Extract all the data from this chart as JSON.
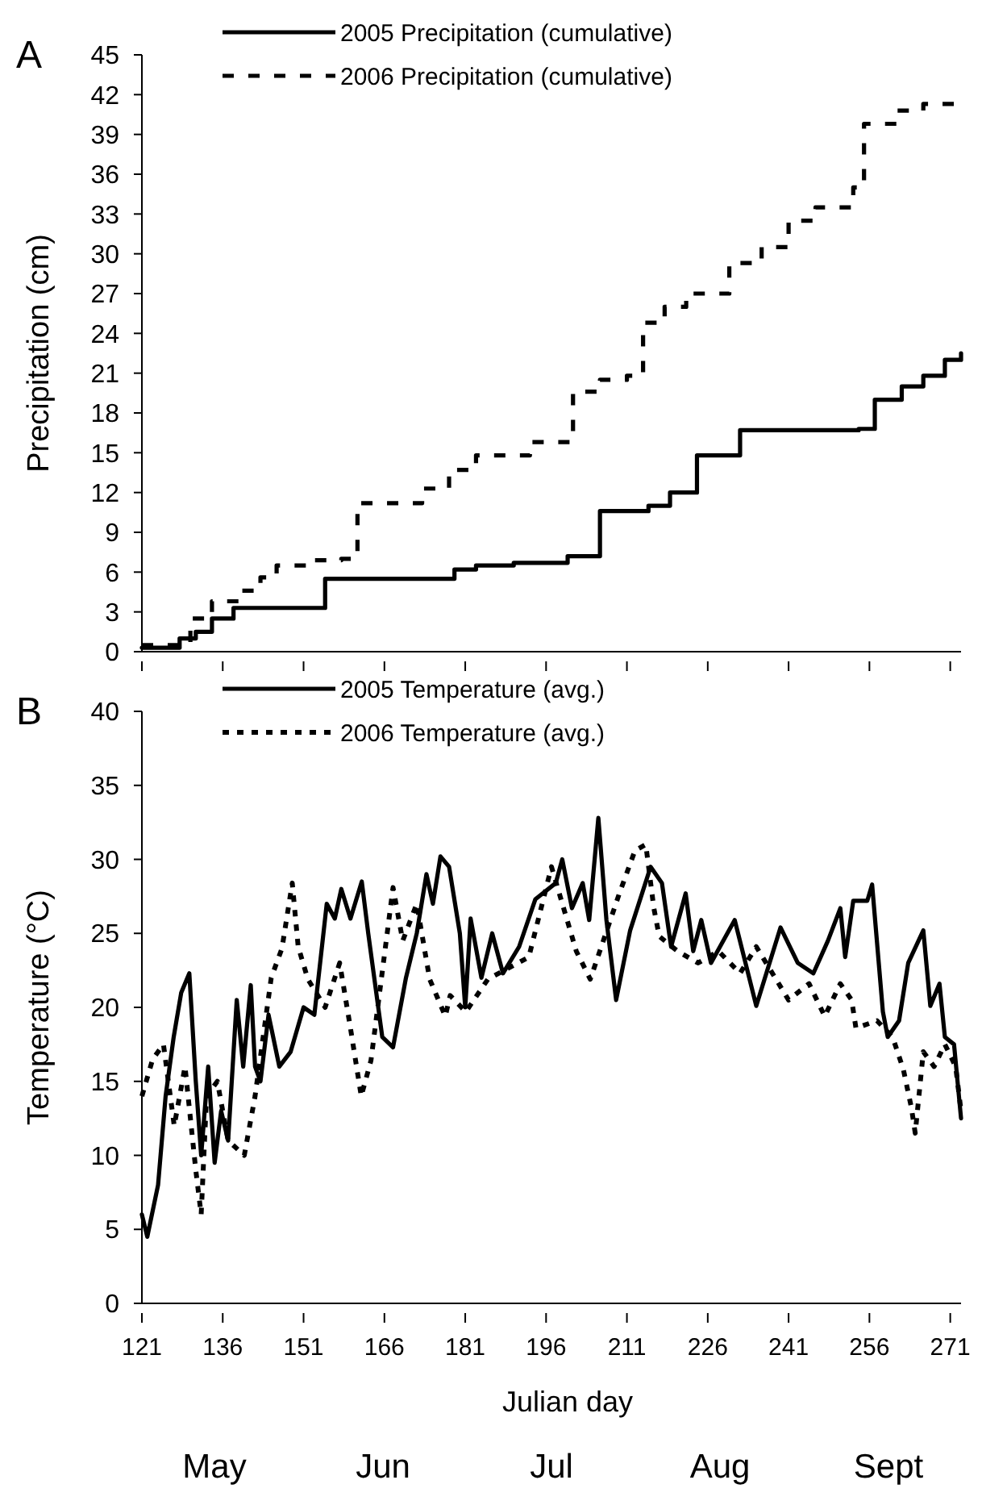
{
  "chart_data": [
    {
      "type": "step",
      "title": "A",
      "ylabel": "Precipitation (cm)",
      "xlim": [
        121,
        273
      ],
      "ylim": [
        0,
        45
      ],
      "xticks": [
        121,
        136,
        151,
        166,
        181,
        196,
        211,
        226,
        241,
        256,
        271
      ],
      "yticks": [
        0,
        3,
        6,
        9,
        12,
        15,
        18,
        21,
        24,
        27,
        30,
        33,
        36,
        39,
        42,
        45
      ],
      "tick_labels": "y",
      "legend": "top",
      "series": [
        {
          "name": "2005  Precipitation (cumulative)",
          "color": "#000000",
          "line_style": "solid",
          "x": [
            121,
            126,
            128,
            131,
            134,
            138,
            155,
            179,
            183,
            190,
            200,
            206,
            215,
            219,
            224,
            232,
            254,
            257,
            262,
            266,
            270,
            273
          ],
          "values": [
            0.3,
            0.3,
            1,
            1.5,
            2.5,
            3.3,
            5.5,
            6.2,
            6.5,
            6.7,
            7.2,
            10.6,
            11,
            12,
            14.8,
            16.7,
            16.8,
            19,
            20,
            20.8,
            22,
            22.5
          ]
        },
        {
          "name": "2006 Precipitation (cumulative)",
          "color": "#000000",
          "line_style": "dashed",
          "x": [
            121,
            126,
            130,
            134,
            139,
            143,
            146,
            152,
            158,
            161,
            167,
            173,
            178,
            183,
            193,
            201,
            206,
            211,
            214,
            218,
            222,
            230,
            236,
            241,
            246,
            253,
            255,
            261,
            266,
            273
          ],
          "values": [
            0.5,
            0.5,
            2.5,
            3.8,
            4.6,
            5.6,
            6.5,
            6.9,
            7,
            11.2,
            11.2,
            12.3,
            13.7,
            14.8,
            15.8,
            19.6,
            20.5,
            20.8,
            24.8,
            26,
            27,
            29.3,
            30.5,
            32.5,
            33.5,
            35,
            39.8,
            40.8,
            41.3,
            41.8
          ]
        }
      ]
    },
    {
      "type": "line",
      "title": "B",
      "xlabel": "Julian day",
      "ylabel": "Temperature (°C)",
      "xlim": [
        121,
        273
      ],
      "ylim": [
        0,
        40
      ],
      "xticks": [
        121,
        136,
        151,
        166,
        181,
        196,
        211,
        226,
        241,
        256,
        271
      ],
      "yticks": [
        0,
        5,
        10,
        15,
        20,
        25,
        30,
        35,
        40
      ],
      "legend": "top",
      "annotations": [
        "May",
        "Jun",
        "Jul",
        "Aug",
        "Sept"
      ],
      "series": [
        {
          "name": "2005 Temperature (avg.)",
          "color": "#000000",
          "line_style": "solid",
          "x": [
            121,
            122,
            124,
            125.4,
            126.9,
            128.3,
            129.8,
            131,
            132,
            133.3,
            134.5,
            135.7,
            137,
            138.6,
            139.8,
            141.2,
            142,
            143,
            144.5,
            146.5,
            148.6,
            151,
            153,
            155.3,
            156.8,
            158,
            159.7,
            161.8,
            163,
            165.6,
            167.6,
            170,
            172,
            173.8,
            175,
            176.4,
            178,
            180,
            181,
            182,
            184,
            186,
            188,
            191,
            194,
            197.8,
            199,
            200.8,
            202.8,
            204,
            205.7,
            207.2,
            209,
            211.6,
            215.4,
            217.5,
            219.2,
            221.9,
            223.3,
            224.8,
            226.6,
            231,
            235,
            239.5,
            242.7,
            245.6,
            248.3,
            250.6,
            251.5,
            253,
            255.6,
            256.5,
            258.5,
            259.4,
            261.5,
            263.2,
            266,
            267.3,
            269,
            270,
            271.7,
            273
          ],
          "values": [
            6,
            4.5,
            8,
            14,
            18,
            21,
            22.3,
            15,
            10,
            16,
            9.5,
            13,
            11,
            20.5,
            16,
            21.5,
            16,
            15,
            19.5,
            16,
            17,
            20,
            19.5,
            27,
            26,
            28,
            26,
            28.5,
            25,
            18,
            17.3,
            22,
            25,
            29,
            27,
            30.2,
            29.5,
            25,
            20,
            26,
            22,
            25,
            22.3,
            24.1,
            27.3,
            28.4,
            30,
            26.7,
            28.4,
            25.9,
            32.8,
            25.9,
            20.5,
            25.2,
            29.5,
            28.4,
            24.1,
            27.7,
            23.8,
            25.9,
            23,
            25.9,
            20.1,
            25.4,
            23,
            22.3,
            24.5,
            26.7,
            23.4,
            27.2,
            27.2,
            28.3,
            19.7,
            18,
            19.1,
            23,
            25.2,
            20.1,
            21.6,
            18,
            17.5,
            12.5
          ]
        },
        {
          "name": "2006 Temperature (avg.)",
          "color": "#000000",
          "line_style": "dotted",
          "x": [
            121,
            123,
            125,
            127,
            129,
            131,
            132,
            133,
            135,
            137,
            140,
            142,
            145,
            147,
            148.9,
            150,
            151.8,
            155,
            157.7,
            159.7,
            161.7,
            163.5,
            167.6,
            169.4,
            172,
            174.4,
            177.3,
            178.2,
            181.1,
            185.2,
            192.8,
            197,
            201.6,
            204.2,
            209.6,
            212.5,
            214.5,
            216,
            217,
            220.4,
            224.2,
            228,
            232,
            235,
            241,
            244.8,
            247.7,
            250.6,
            252.7,
            253.5,
            257.4,
            260.3,
            262.3,
            263.8,
            264.5,
            266,
            268,
            270,
            272,
            273
          ],
          "values": [
            14,
            16.5,
            17.5,
            12,
            16,
            9,
            6,
            14,
            15,
            11,
            10,
            14,
            22,
            24,
            28.4,
            24.1,
            21.9,
            20,
            23,
            18.6,
            14,
            16.4,
            28.1,
            24.5,
            27,
            21.9,
            19.4,
            20.8,
            19.7,
            21.9,
            23.4,
            29.5,
            23.8,
            21.9,
            27.7,
            30.6,
            31,
            26.7,
            24.8,
            23.8,
            23,
            23.8,
            22.3,
            24.1,
            20.5,
            21.6,
            19.4,
            21.6,
            20.5,
            18.6,
            19.1,
            18,
            15.8,
            13.2,
            11.5,
            17,
            16,
            17.5,
            16,
            13
          ]
        }
      ]
    }
  ]
}
